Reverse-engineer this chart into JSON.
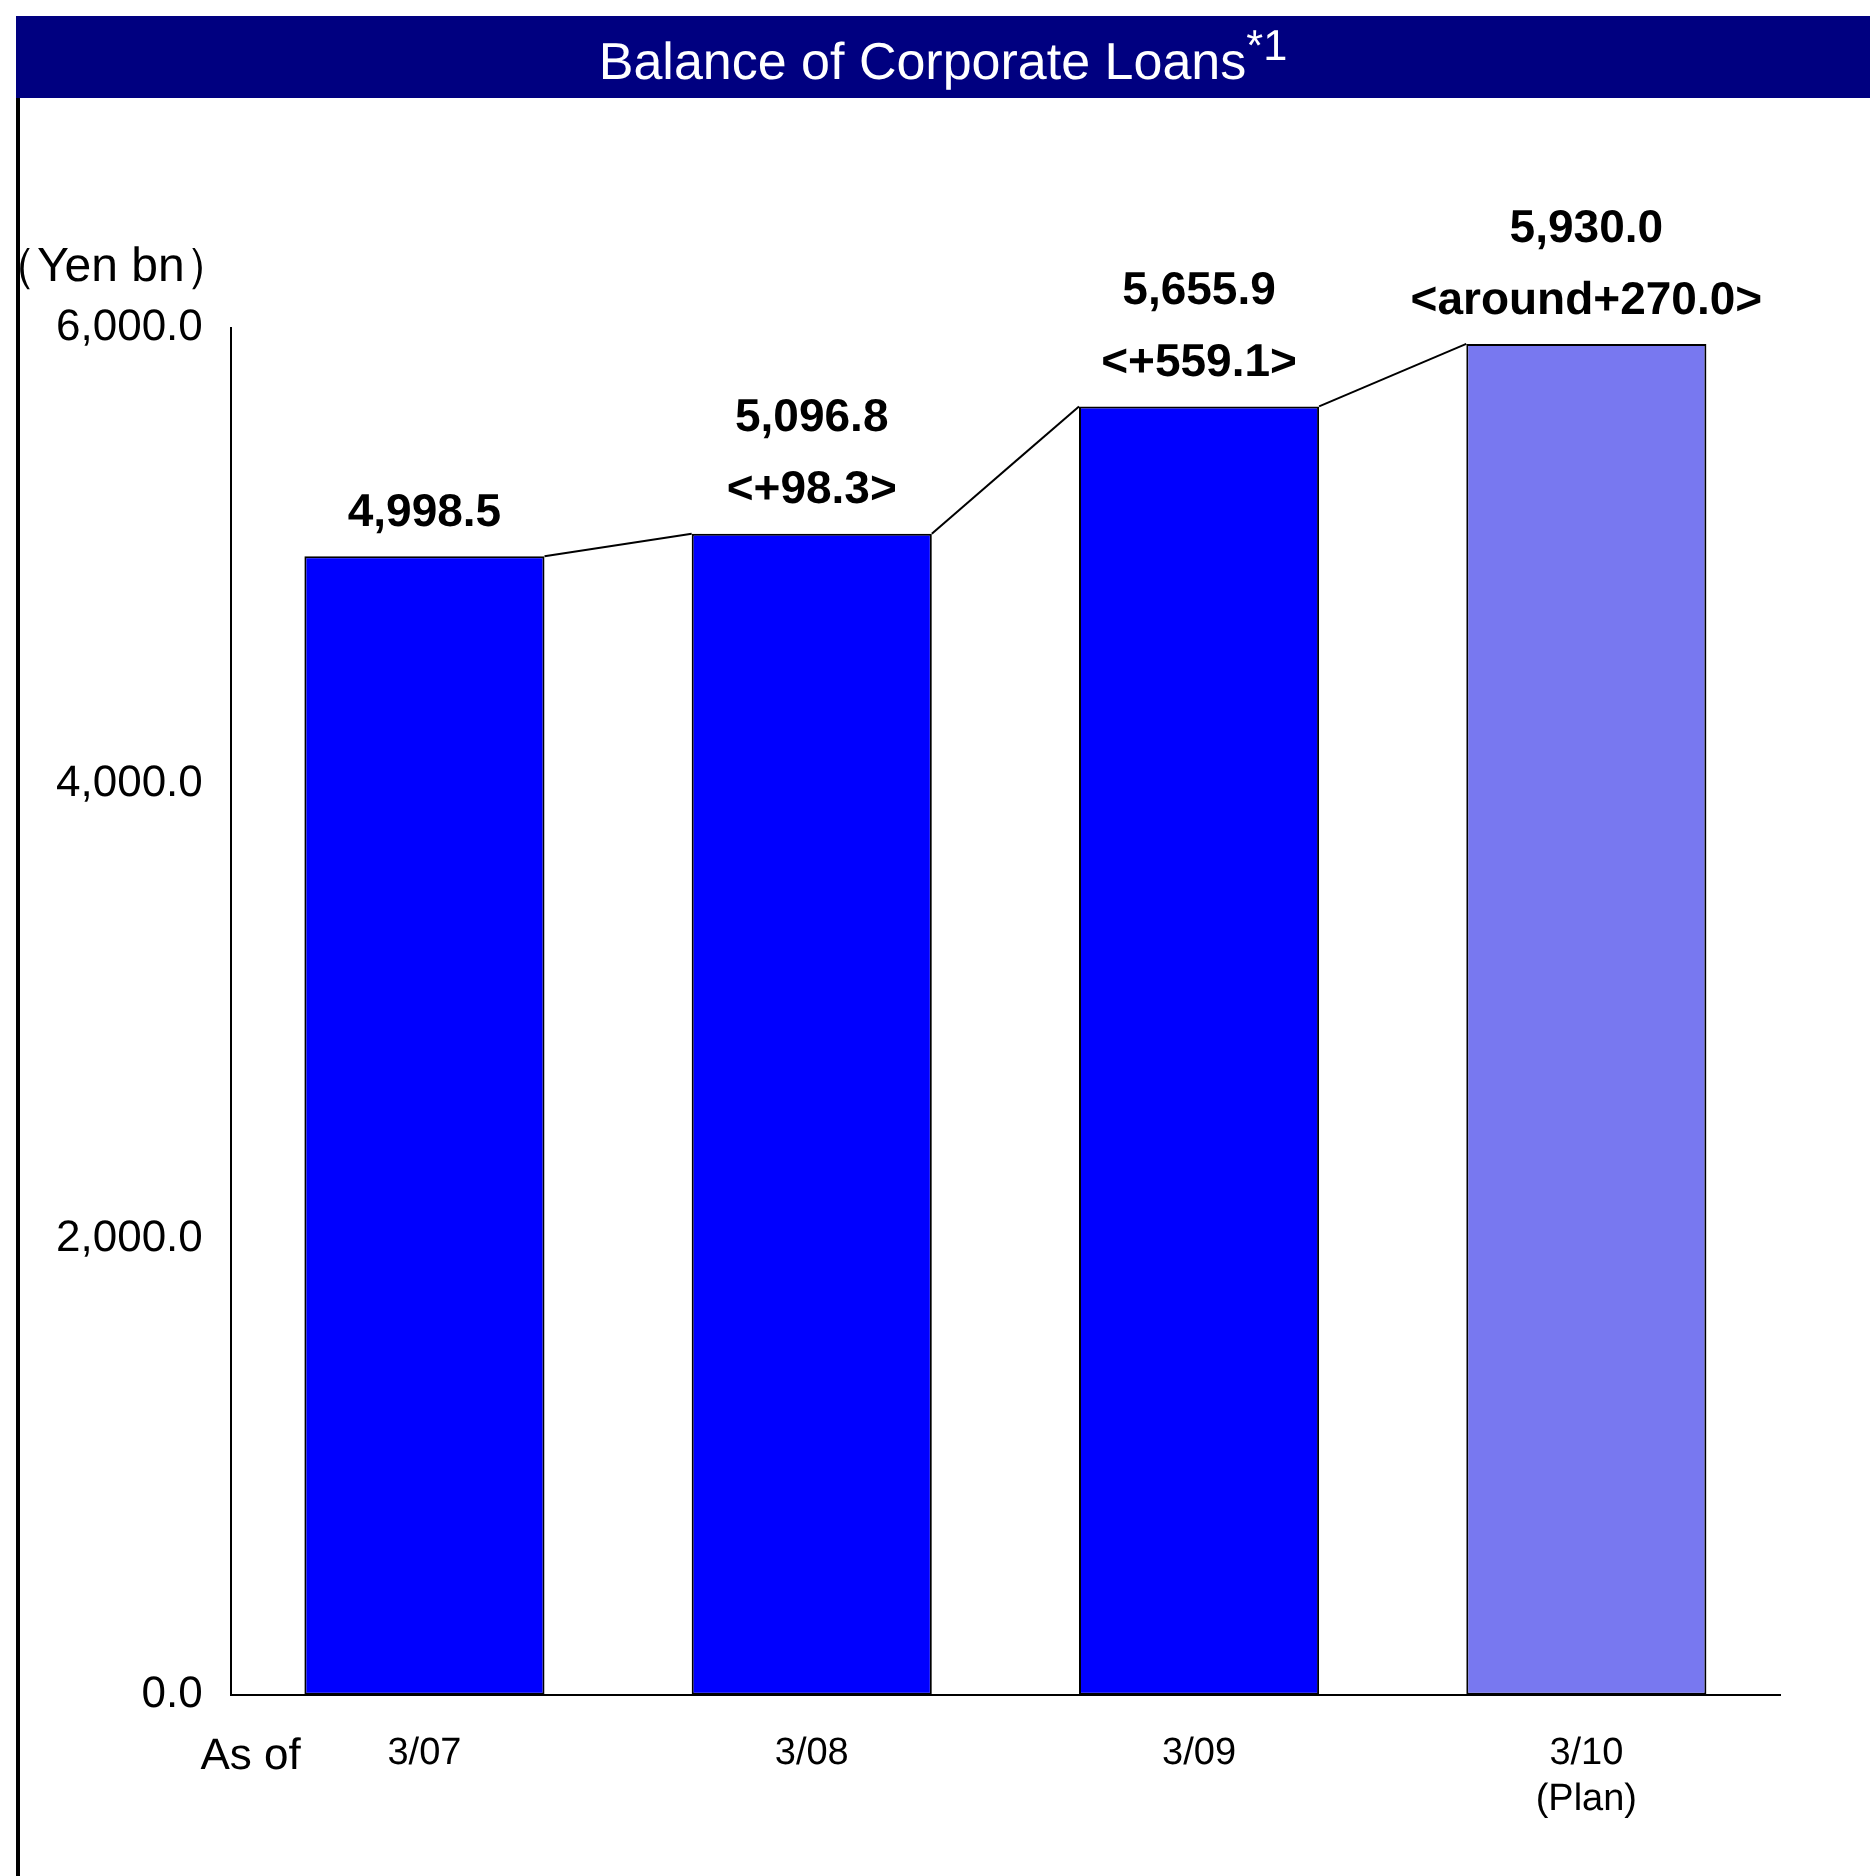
{
  "chart_data": {
    "type": "bar",
    "title": "Balance of Corporate Loans$^{*1}$",
    "ylabel": "（Yen bn）",
    "categories": [
      "3/07",
      "3/08",
      "3/09",
      "3/10\n(Plan)"
    ],
    "values": [
      4998.5,
      5096.8,
      5655.9,
      5930.0
    ],
    "colors": [
      "#0000ff",
      "#0000ff",
      "#0000ff",
      "#7878f0"
    ],
    "value_labels": [
      "4,998.5",
      "5,096.8\n<+98.3>",
      "5,655.9\n<+559.1>",
      "5,930.0\n<around+270.0>"
    ],
    "ylim": [
      0,
      6000
    ],
    "yticks": [
      {
        "value": 0,
        "label": "0.0"
      },
      {
        "value": 2000,
        "label": "2,000.0"
      },
      {
        "value": 4000,
        "label": "4,000.0"
      },
      {
        "value": 6000,
        "label": "6,000.0"
      }
    ],
    "annotations": [
      "As of"
    ],
    "grid": false,
    "legend": false
  }
}
